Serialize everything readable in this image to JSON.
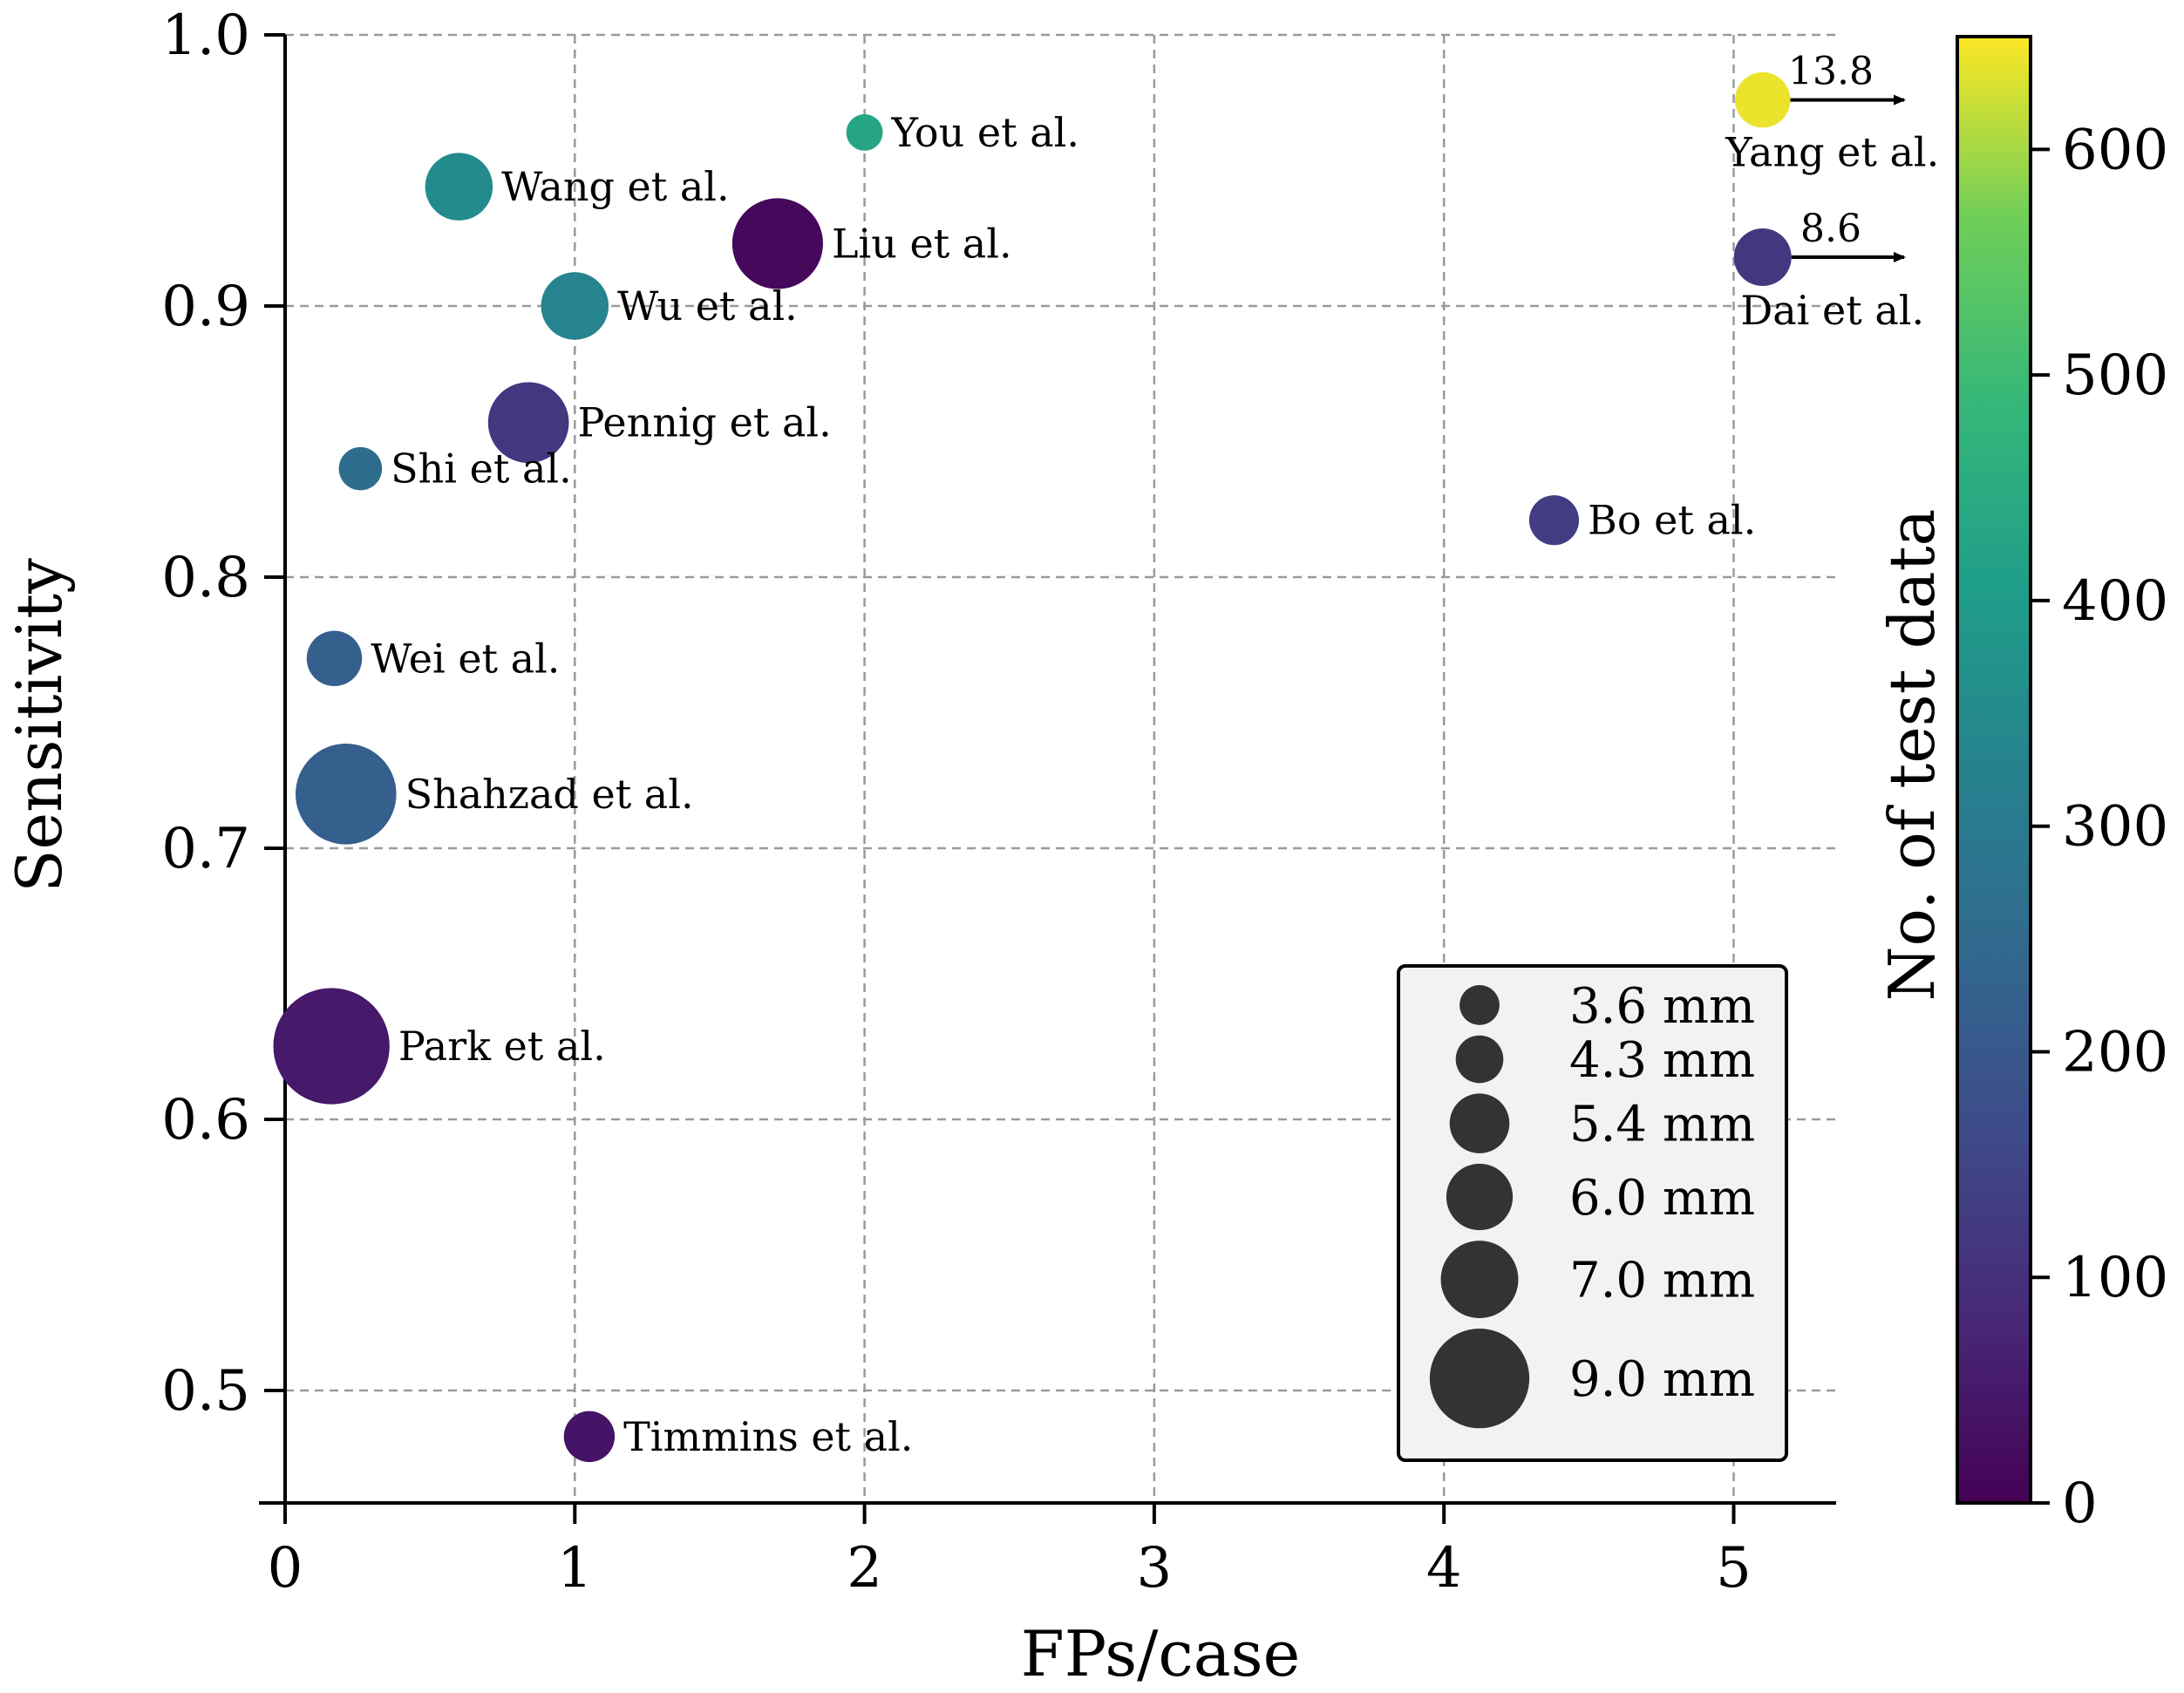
{
  "chart_data": {
    "type": "scatter",
    "title": "",
    "xlabel": "FPs/case",
    "ylabel": "Sensitivity",
    "xlim": [
      -0.08,
      5.35
    ],
    "ylim": [
      0.458,
      1.0
    ],
    "xticks": [
      0,
      1,
      2,
      3,
      4,
      5
    ],
    "xtick_labels": [
      "0",
      "1",
      "2",
      "3",
      "4",
      "5"
    ],
    "yticks": [
      0.5,
      0.6,
      0.7,
      0.8,
      0.9,
      1.0
    ],
    "ytick_labels": [
      "0.5",
      "0.6",
      "0.7",
      "0.8",
      "0.9",
      "1.0"
    ],
    "grid": true,
    "colorbar": {
      "label": "No. of test data",
      "min": 0,
      "max": 650,
      "colormap": "viridis",
      "ticks": [
        0,
        100,
        200,
        300,
        400,
        500,
        600
      ],
      "tick_labels": [
        "0",
        "100",
        "200",
        "300",
        "400",
        "500",
        "600"
      ]
    },
    "size_legend": {
      "position": "bottom-right",
      "entries": [
        {
          "label": "3.6 mm",
          "size_mm": 3.6
        },
        {
          "label": "4.3 mm",
          "size_mm": 4.3
        },
        {
          "label": "5.4 mm",
          "size_mm": 5.4
        },
        {
          "label": "6.0 mm",
          "size_mm": 6.0
        },
        {
          "label": "7.0 mm",
          "size_mm": 7.0
        },
        {
          "label": "9.0 mm",
          "size_mm": 9.0
        }
      ]
    },
    "points": [
      {
        "name": "You et al.",
        "fps": 2.0,
        "sensitivity": 0.964,
        "test_data": 430,
        "size_mm": 3.3
      },
      {
        "name": "Yang et al.",
        "fps": 5.1,
        "sensitivity": 0.976,
        "test_data": 640,
        "size_mm": 5.0,
        "actual_fps_label": "13.8"
      },
      {
        "name": "Wang et al.",
        "fps": 0.6,
        "sensitivity": 0.944,
        "test_data": 350,
        "size_mm": 6.1
      },
      {
        "name": "Liu et al.",
        "fps": 1.7,
        "sensitivity": 0.923,
        "test_data": 15,
        "size_mm": 8.2
      },
      {
        "name": "Dai et al.",
        "fps": 5.1,
        "sensitivity": 0.918,
        "test_data": 120,
        "size_mm": 5.2,
        "actual_fps_label": "8.6"
      },
      {
        "name": "Wu et al.",
        "fps": 1.0,
        "sensitivity": 0.9,
        "test_data": 330,
        "size_mm": 6.1
      },
      {
        "name": "Pennig et al.",
        "fps": 0.84,
        "sensitivity": 0.857,
        "test_data": 120,
        "size_mm": 7.3
      },
      {
        "name": "Shi et al.",
        "fps": 0.26,
        "sensitivity": 0.84,
        "test_data": 260,
        "size_mm": 3.9
      },
      {
        "name": "Bo et al.",
        "fps": 4.38,
        "sensitivity": 0.821,
        "test_data": 130,
        "size_mm": 4.5
      },
      {
        "name": "Wei et al.",
        "fps": 0.17,
        "sensitivity": 0.77,
        "test_data": 220,
        "size_mm": 5.0
      },
      {
        "name": "Shahzad et al.",
        "fps": 0.21,
        "sensitivity": 0.72,
        "test_data": 220,
        "size_mm": 9.1
      },
      {
        "name": "Park et al.",
        "fps": 0.16,
        "sensitivity": 0.627,
        "test_data": 50,
        "size_mm": 10.5
      },
      {
        "name": "Timmins et al.",
        "fps": 1.05,
        "sensitivity": 0.483,
        "test_data": 40,
        "size_mm": 4.6
      }
    ]
  }
}
